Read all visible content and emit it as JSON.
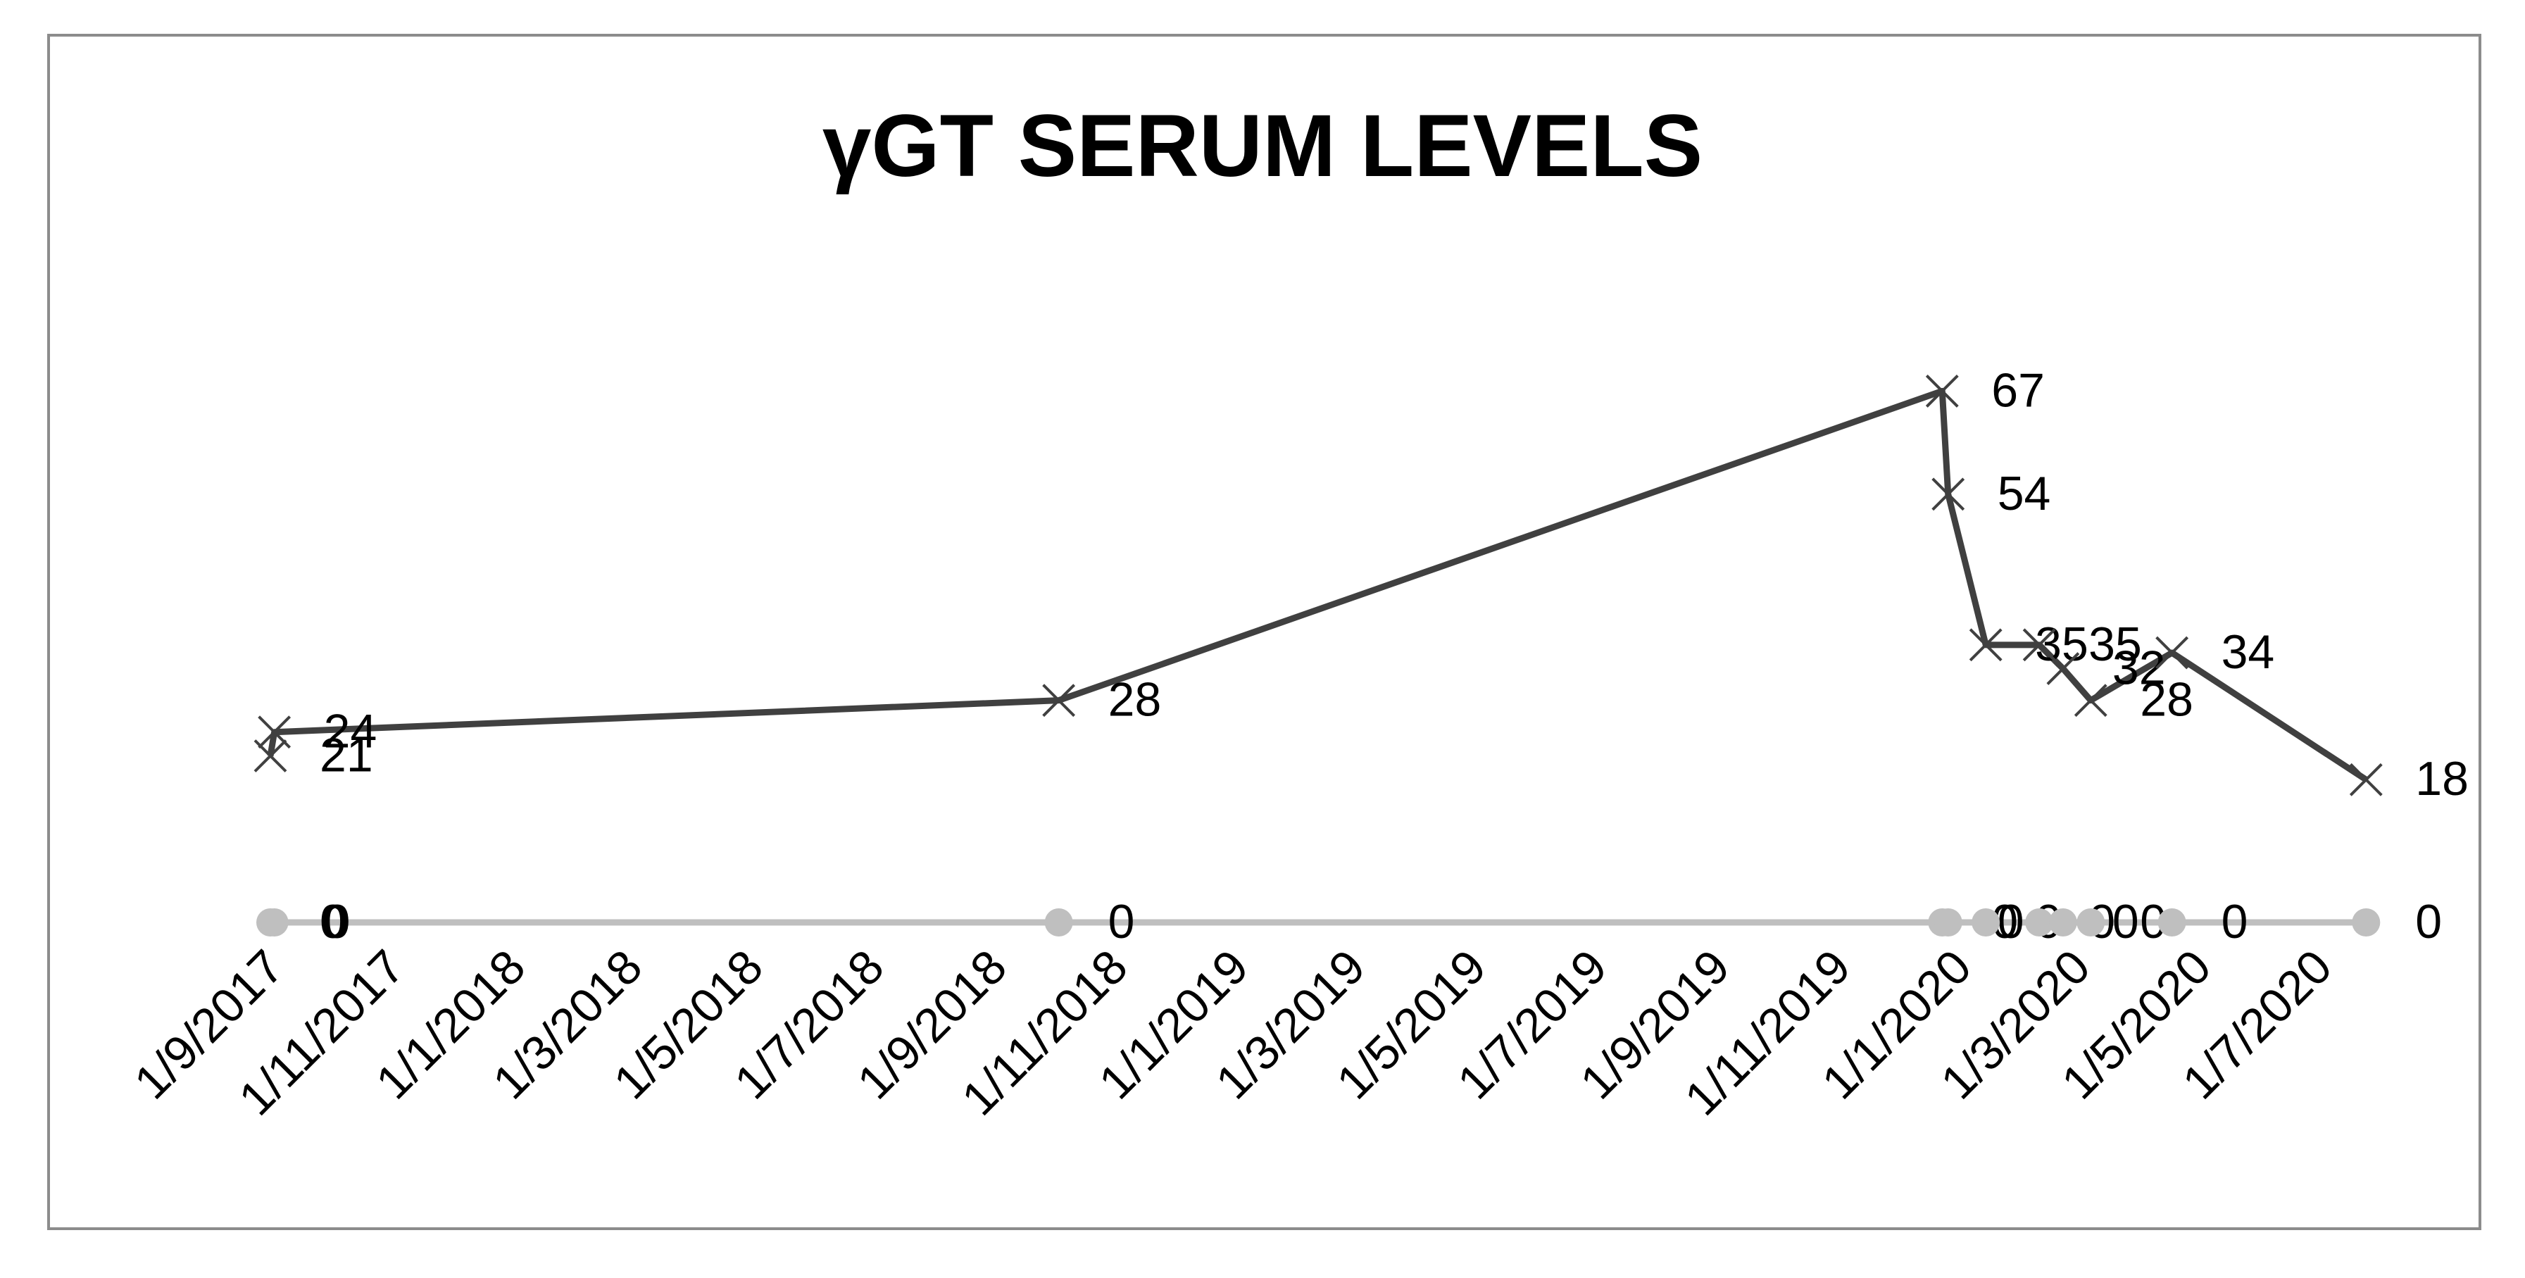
{
  "chart_data": {
    "type": "line",
    "title": "γGT SERUM LEVELS",
    "series": [
      {
        "color": "#404040",
        "marker": "x",
        "x": [
          "2017-09-01",
          "2017-09-03",
          "2018-10-04",
          "2019-12-24",
          "2019-12-27",
          "2020-01-15",
          "2020-02-11",
          "2020-02-23",
          "2020-03-08",
          "2020-04-18",
          "2020-07-25"
        ],
        "values": [
          21,
          24,
          28,
          67,
          54,
          35,
          35,
          32,
          28,
          34,
          18
        ]
      },
      {
        "color": "#bfbfbf",
        "marker": "circle",
        "x": [
          "2017-09-01",
          "2017-09-03",
          "2018-10-04",
          "2019-12-24",
          "2019-12-27",
          "2020-01-15",
          "2020-02-11",
          "2020-02-23",
          "2020-03-08",
          "2020-04-18",
          "2020-07-25"
        ],
        "values": [
          0,
          0,
          0,
          0,
          0,
          0,
          0,
          0,
          0,
          0,
          0
        ]
      }
    ],
    "xlim": [
      "2017-09-01",
      "2020-08-01"
    ],
    "xticks": [
      {
        "value": "2017-09-01",
        "label": "1/9/2017"
      },
      {
        "value": "2017-11-01",
        "label": "1/11/2017"
      },
      {
        "value": "2018-01-01",
        "label": "1/1/2018"
      },
      {
        "value": "2018-03-01",
        "label": "1/3/2018"
      },
      {
        "value": "2018-05-01",
        "label": "1/5/2018"
      },
      {
        "value": "2018-07-01",
        "label": "1/7/2018"
      },
      {
        "value": "2018-09-01",
        "label": "1/9/2018"
      },
      {
        "value": "2018-11-01",
        "label": "1/11/2018"
      },
      {
        "value": "2019-01-01",
        "label": "1/1/2019"
      },
      {
        "value": "2019-03-01",
        "label": "1/3/2019"
      },
      {
        "value": "2019-05-01",
        "label": "1/5/2019"
      },
      {
        "value": "2019-07-01",
        "label": "1/7/2019"
      },
      {
        "value": "2019-09-01",
        "label": "1/9/2019"
      },
      {
        "value": "2019-11-01",
        "label": "1/11/2019"
      },
      {
        "value": "2020-01-01",
        "label": "1/1/2020"
      },
      {
        "value": "2020-03-01",
        "label": "1/3/2020"
      },
      {
        "value": "2020-05-01",
        "label": "1/5/2020"
      },
      {
        "value": "2020-07-01",
        "label": "1/7/2020"
      }
    ],
    "ylim": [
      0,
      80
    ],
    "grid": false
  }
}
